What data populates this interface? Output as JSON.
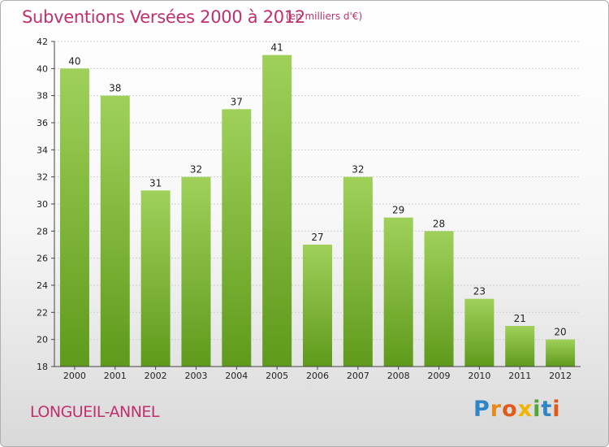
{
  "header": {
    "title": "Subventions Versées 2000 à 2012",
    "subtitle": "(en milliers d'€)"
  },
  "footer": {
    "commune": "LONGUEIL-ANNEL",
    "logo_letters": [
      "P",
      "r",
      "o",
      "x",
      "i",
      "t",
      "i"
    ]
  },
  "colors": {
    "title": "#c0306e",
    "bar_top": "#9fd15a",
    "bar_bottom": "#5f9a1c",
    "grid": "#cfcfcf"
  },
  "chart_data": {
    "type": "bar",
    "title": "Subventions Versées 2000 à 2012",
    "xlabel": "",
    "ylabel": "",
    "categories": [
      "2000",
      "2001",
      "2002",
      "2003",
      "2004",
      "2005",
      "2006",
      "2007",
      "2008",
      "2009",
      "2010",
      "2011",
      "2012"
    ],
    "values": [
      40,
      38,
      31,
      32,
      37,
      41,
      27,
      32,
      29,
      28,
      23,
      21,
      20
    ],
    "ylim": [
      18,
      42
    ],
    "yticks": [
      18,
      20,
      22,
      24,
      26,
      28,
      30,
      32,
      34,
      36,
      38,
      40,
      42
    ],
    "grid": true,
    "data_labels": true
  }
}
